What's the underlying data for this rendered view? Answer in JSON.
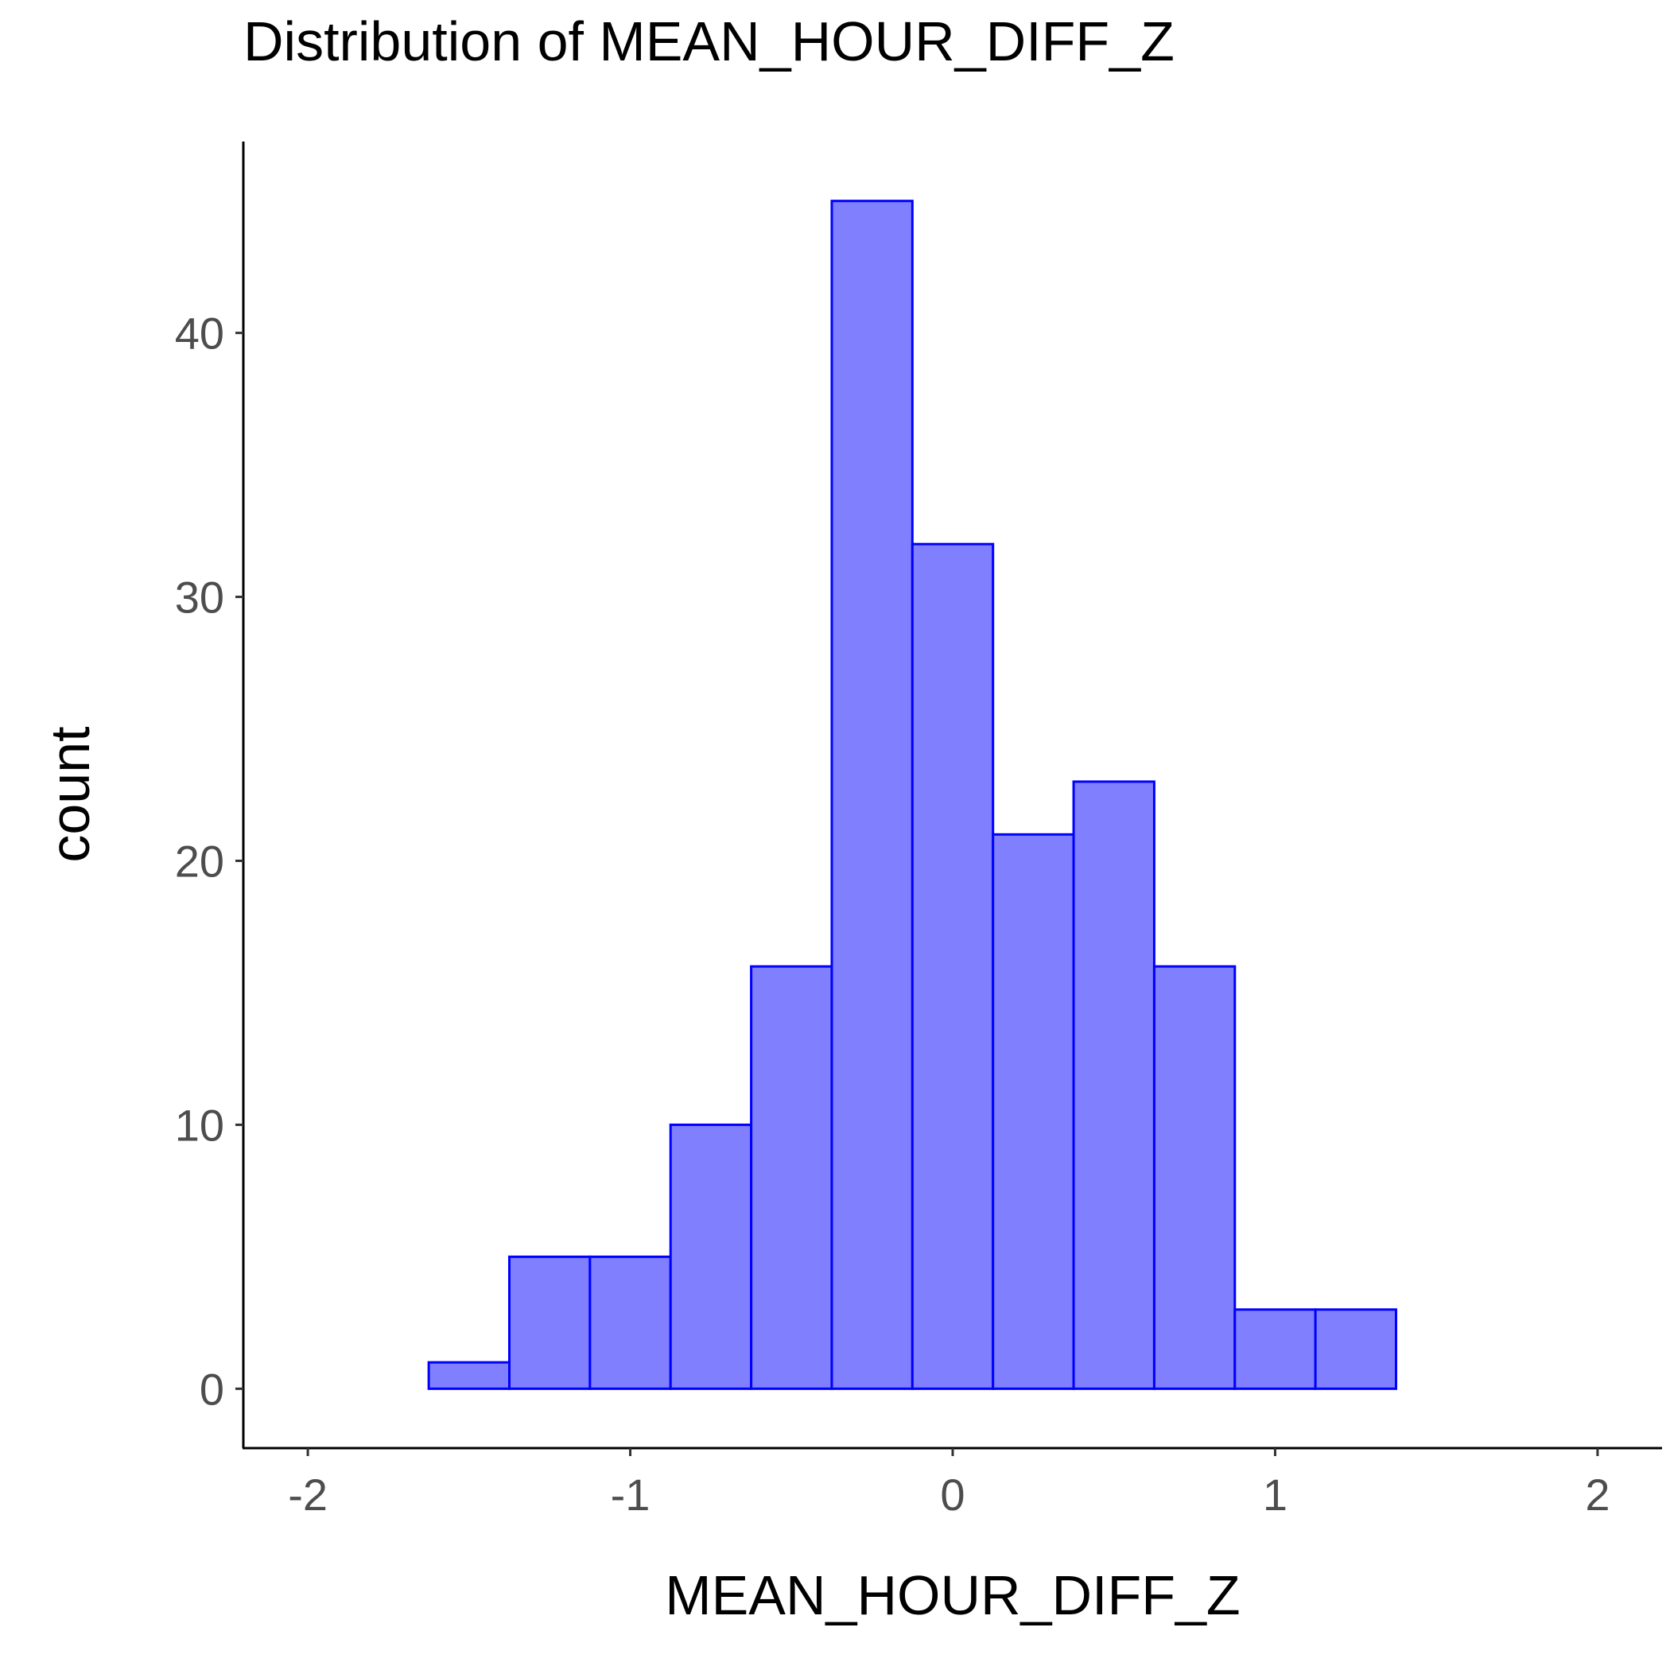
{
  "chart_data": {
    "type": "bar",
    "title": "Distribution of MEAN_HOUR_DIFF_Z",
    "xlabel": "MEAN_HOUR_DIFF_Z",
    "ylabel": "count",
    "xlim": [
      -2.2,
      2.2
    ],
    "ylim": [
      -2.25,
      47.25
    ],
    "x_ticks": [
      -2,
      -1,
      0,
      1,
      2
    ],
    "y_ticks": [
      0,
      10,
      20,
      30,
      40
    ],
    "bin_width": 0.25,
    "bins": [
      {
        "start": -1.875,
        "end": -1.625,
        "count": 0
      },
      {
        "start": -1.625,
        "end": -1.375,
        "count": 1
      },
      {
        "start": -1.375,
        "end": -1.125,
        "count": 5
      },
      {
        "start": -1.125,
        "end": -0.875,
        "count": 5
      },
      {
        "start": -0.875,
        "end": -0.625,
        "count": 10
      },
      {
        "start": -0.625,
        "end": -0.375,
        "count": 16
      },
      {
        "start": -0.375,
        "end": -0.125,
        "count": 45
      },
      {
        "start": -0.125,
        "end": 0.125,
        "count": 32
      },
      {
        "start": 0.125,
        "end": 0.375,
        "count": 21
      },
      {
        "start": 0.375,
        "end": 0.625,
        "count": 23
      },
      {
        "start": 0.625,
        "end": 0.875,
        "count": 16
      },
      {
        "start": 0.875,
        "end": 1.125,
        "count": 3
      },
      {
        "start": 1.125,
        "end": 1.375,
        "count": 3
      },
      {
        "start": 1.375,
        "end": 1.625,
        "count": 0
      },
      {
        "start": 1.625,
        "end": 1.875,
        "count": 0
      }
    ],
    "fill_color": "#8080ff",
    "stroke_color": "#0000ff",
    "grid": false,
    "legend": "none"
  }
}
